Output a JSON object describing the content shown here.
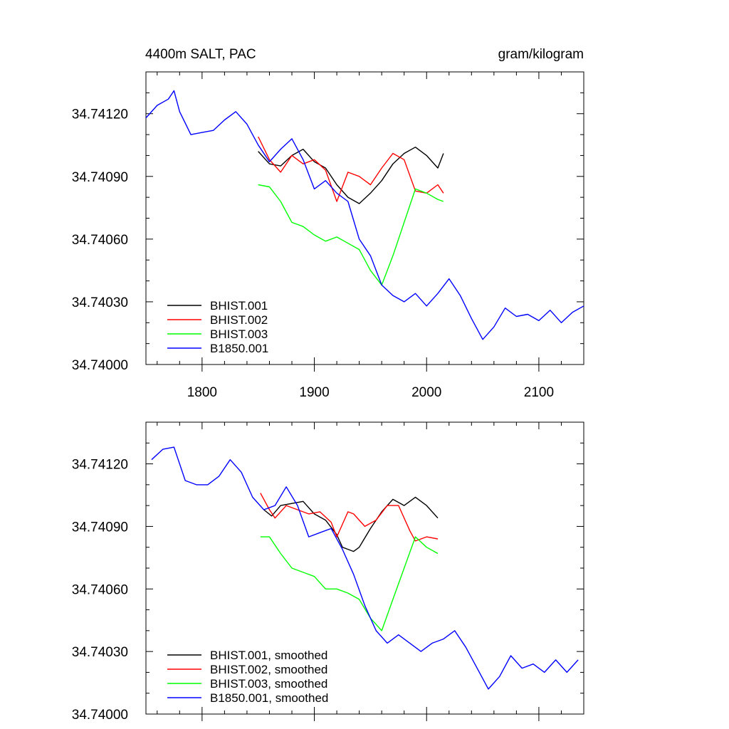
{
  "chart_data": [
    {
      "type": "line",
      "title": "4400m SALT, PAC",
      "units": "gram/kilogram",
      "xlim": [
        1750,
        2140
      ],
      "ylim": [
        34.74,
        34.7414
      ],
      "yticks": [
        34.74,
        34.7403,
        34.7406,
        34.7409,
        34.7412
      ],
      "ytick_labels": [
        "34.74000",
        "34.74030",
        "34.74060",
        "34.74090",
        "34.74120"
      ],
      "xticks": [
        1800,
        1900,
        2000,
        2100
      ],
      "xtick_labels": [
        "1800",
        "1900",
        "2000",
        "2100"
      ],
      "legend_position": "bottom-left",
      "series": [
        {
          "name": "BHIST.001",
          "color": "#000000",
          "x": [
            1850,
            1860,
            1870,
            1880,
            1890,
            1900,
            1910,
            1920,
            1930,
            1940,
            1950,
            1960,
            1970,
            1980,
            1990,
            2000,
            2010,
            2015
          ],
          "y": [
            34.74102,
            34.74096,
            34.74095,
            34.741,
            34.74103,
            34.74097,
            34.74094,
            34.74086,
            34.7408,
            34.74077,
            34.74082,
            34.74088,
            34.74096,
            34.74101,
            34.74104,
            34.741,
            34.74094,
            34.74101
          ]
        },
        {
          "name": "BHIST.002",
          "color": "#ff0000",
          "x": [
            1850,
            1860,
            1870,
            1880,
            1890,
            1900,
            1910,
            1920,
            1930,
            1940,
            1950,
            1960,
            1970,
            1980,
            1990,
            2000,
            2010,
            2015
          ],
          "y": [
            34.74109,
            34.74098,
            34.74092,
            34.741,
            34.74096,
            34.74098,
            34.74093,
            34.74078,
            34.74092,
            34.7409,
            34.74086,
            34.74094,
            34.74101,
            34.74098,
            34.74083,
            34.74082,
            34.74086,
            34.74082
          ]
        },
        {
          "name": "BHIST.003",
          "color": "#00ff00",
          "x": [
            1850,
            1860,
            1870,
            1880,
            1890,
            1900,
            1910,
            1920,
            1930,
            1940,
            1950,
            1960,
            1970,
            1980,
            1990,
            2000,
            2010,
            2015
          ],
          "y": [
            34.74086,
            34.74085,
            34.74078,
            34.74068,
            34.74066,
            34.74062,
            34.74059,
            34.74061,
            34.74058,
            34.74055,
            34.74045,
            34.74038,
            34.74052,
            34.74068,
            34.74084,
            34.74082,
            34.74079,
            34.74078
          ]
        },
        {
          "name": "B1850.001",
          "color": "#0000ff",
          "x": [
            1750,
            1760,
            1770,
            1775,
            1780,
            1790,
            1800,
            1810,
            1820,
            1830,
            1840,
            1850,
            1860,
            1870,
            1880,
            1890,
            1900,
            1910,
            1920,
            1930,
            1940,
            1950,
            1960,
            1970,
            1980,
            1990,
            2000,
            2010,
            2020,
            2030,
            2040,
            2050,
            2060,
            2070,
            2080,
            2090,
            2100,
            2110,
            2120,
            2130,
            2140
          ],
          "y": [
            34.74118,
            34.74124,
            34.74127,
            34.74131,
            34.74121,
            34.7411,
            34.74111,
            34.74112,
            34.74117,
            34.74121,
            34.74115,
            34.74105,
            34.74097,
            34.74103,
            34.74108,
            34.74098,
            34.74084,
            34.74088,
            34.74082,
            34.74078,
            34.7406,
            34.74052,
            34.74038,
            34.74033,
            34.7403,
            34.74034,
            34.74028,
            34.74034,
            34.74041,
            34.74033,
            34.74022,
            34.74012,
            34.74018,
            34.74027,
            34.74023,
            34.74024,
            34.74021,
            34.74026,
            34.7402,
            34.74025,
            34.74028
          ]
        }
      ]
    },
    {
      "type": "line",
      "title": "",
      "xlim": [
        1750,
        2140
      ],
      "ylim": [
        34.74,
        34.7414
      ],
      "yticks": [
        34.74,
        34.7403,
        34.7406,
        34.7409,
        34.7412
      ],
      "ytick_labels": [
        "34.74000",
        "34.74030",
        "34.74060",
        "34.74090",
        "34.74120"
      ],
      "xticks": [
        1800,
        1900,
        2000,
        2100
      ],
      "legend_position": "bottom-left",
      "series": [
        {
          "name": "BHIST.001, smoothed",
          "color": "#000000",
          "x": [
            1855,
            1862,
            1870,
            1880,
            1890,
            1900,
            1910,
            1920,
            1925,
            1930,
            1935,
            1940,
            1950,
            1960,
            1970,
            1980,
            1990,
            2000,
            2010
          ],
          "y": [
            34.74098,
            34.74095,
            34.741,
            34.74101,
            34.74102,
            34.74096,
            34.74093,
            34.74086,
            34.7408,
            34.74079,
            34.74078,
            34.7408,
            34.74089,
            34.74097,
            34.74103,
            34.741,
            34.74104,
            34.741,
            34.74094
          ]
        },
        {
          "name": "BHIST.002, smoothed",
          "color": "#ff0000",
          "x": [
            1852,
            1860,
            1865,
            1875,
            1885,
            1895,
            1905,
            1915,
            1920,
            1930,
            1935,
            1945,
            1955,
            1965,
            1975,
            1985,
            1990,
            2000,
            2010
          ],
          "y": [
            34.74106,
            34.74098,
            34.74094,
            34.741,
            34.74098,
            34.74096,
            34.74097,
            34.74092,
            34.74085,
            34.74097,
            34.74096,
            34.7409,
            34.74093,
            34.741,
            34.741,
            34.74088,
            34.74083,
            34.74085,
            34.74084
          ]
        },
        {
          "name": "BHIST.003, smoothed",
          "color": "#00ff00",
          "x": [
            1852,
            1860,
            1870,
            1880,
            1890,
            1900,
            1910,
            1920,
            1930,
            1940,
            1950,
            1960,
            1970,
            1980,
            1990,
            2000,
            2010
          ],
          "y": [
            34.74085,
            34.74085,
            34.74077,
            34.7407,
            34.74068,
            34.74066,
            34.7406,
            34.7406,
            34.74058,
            34.74055,
            34.74046,
            34.7404,
            34.74055,
            34.7407,
            34.74085,
            34.7408,
            34.74077
          ]
        },
        {
          "name": "B1850.001, smoothed",
          "color": "#0000ff",
          "x": [
            1755,
            1765,
            1775,
            1785,
            1795,
            1805,
            1815,
            1825,
            1835,
            1845,
            1855,
            1865,
            1875,
            1885,
            1895,
            1905,
            1915,
            1925,
            1935,
            1945,
            1955,
            1965,
            1975,
            1985,
            1995,
            2005,
            2015,
            2025,
            2035,
            2045,
            2055,
            2065,
            2075,
            2085,
            2095,
            2105,
            2115,
            2125,
            2135
          ],
          "y": [
            34.74122,
            34.74127,
            34.74128,
            34.74112,
            34.7411,
            34.7411,
            34.74114,
            34.74122,
            34.74116,
            34.74104,
            34.74098,
            34.741,
            34.74109,
            34.741,
            34.74085,
            34.74087,
            34.74089,
            34.74079,
            34.74067,
            34.74052,
            34.7404,
            34.74034,
            34.74038,
            34.74034,
            34.7403,
            34.74034,
            34.74036,
            34.7404,
            34.74032,
            34.74022,
            34.74012,
            34.74018,
            34.74028,
            34.74022,
            34.74024,
            34.7402,
            34.74026,
            34.7402,
            34.74026
          ]
        }
      ]
    }
  ]
}
